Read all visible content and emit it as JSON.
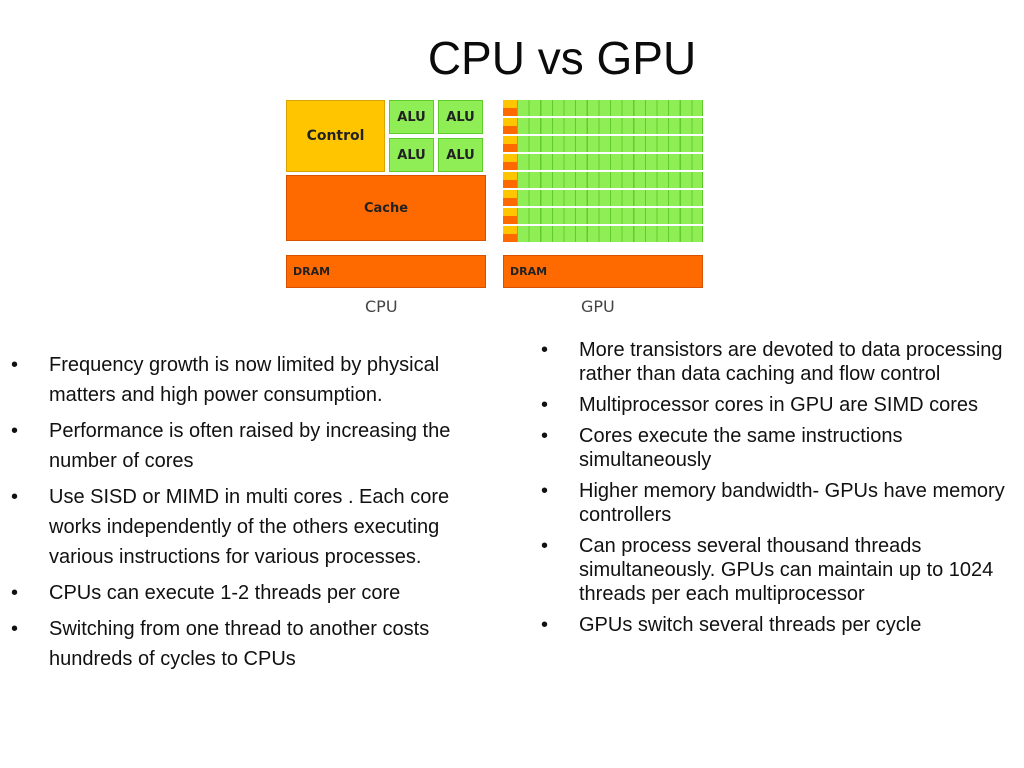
{
  "title": "CPU vs GPU",
  "diagram": {
    "cpu": {
      "control_label": "Control",
      "alu_labels": [
        "ALU",
        "ALU",
        "ALU",
        "ALU"
      ],
      "cache_label": "Cache",
      "dram_label": "DRAM",
      "caption": "CPU"
    },
    "gpu": {
      "dram_label": "DRAM",
      "caption": "GPU"
    },
    "colors": {
      "control": "#ffc600",
      "alu": "#8fee56",
      "cache": "#ff6a00",
      "dram": "#ff6a00"
    }
  },
  "bullet_glyph": "•",
  "left_bullets": [
    "Frequency growth is now limited by physical matters and high power consumption.",
    "Performance is often raised by increasing the number of cores",
    "Use SISD or MIMD in multi cores . Each core works independently of the others executing various instructions for various processes.",
    "CPUs can execute 1-2 threads per core",
    "Switching from one thread to another costs hundreds of cycles to CPUs"
  ],
  "right_bullets": [
    "More transistors are devoted to data processing rather than data caching and flow control",
    "Multiprocessor cores in GPU are SIMD  cores",
    "Cores execute the same instructions simultaneously",
    "Higher memory bandwidth- GPUs have memory controllers",
    "Can process several thousand threads simultaneously. GPUs can maintain up to 1024 threads per each multiprocessor",
    "GPUs switch several  threads per cycle"
  ]
}
